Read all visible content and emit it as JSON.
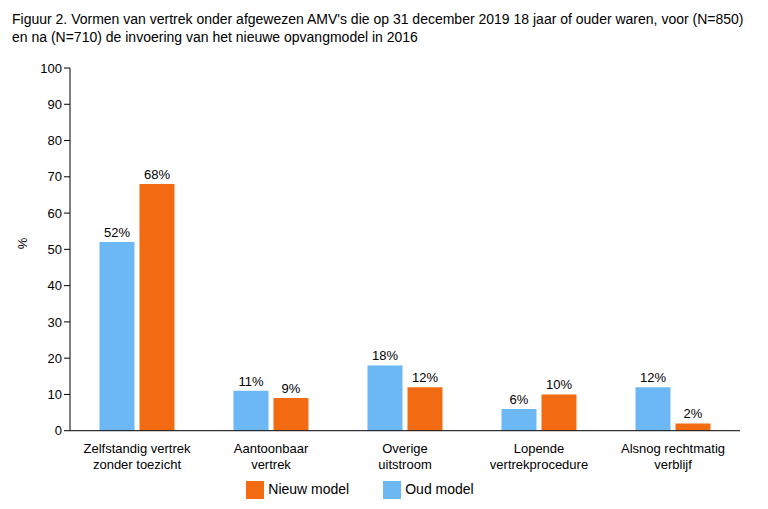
{
  "chart_data": {
    "type": "bar",
    "title": "Figuur 2. Vormen van vertrek onder afgewezen AMV's die op 31 december 2019 18 jaar of ouder waren, voor (N=850) en na (N=710) de invoering van het nieuwe opvangmodel in 2016",
    "ylabel": "%",
    "categories": [
      "Zelfstandig vertrek zonder toezicht",
      "Aantoonbaar vertrek",
      "Overige uitstroom",
      "Lopende vertrekprocedure",
      "Alsnog rechtmatig verblijf"
    ],
    "series": [
      {
        "name": "Oud model",
        "color": "#6bb8f5",
        "values": [
          52,
          11,
          18,
          6,
          12
        ],
        "value_labels": [
          "52%",
          "11%",
          "18%",
          "6%",
          "12%"
        ]
      },
      {
        "name": "Nieuw model",
        "color": "#f26b12",
        "values": [
          68,
          9,
          12,
          10,
          2
        ],
        "value_labels": [
          "68%",
          "9%",
          "12%",
          "10%",
          "2%"
        ]
      }
    ],
    "ylim": [
      0,
      100
    ],
    "yticks": [
      0,
      10,
      20,
      30,
      40,
      50,
      60,
      70,
      80,
      90,
      100
    ],
    "grid": false,
    "legend": "bottom",
    "data_labels": true
  }
}
